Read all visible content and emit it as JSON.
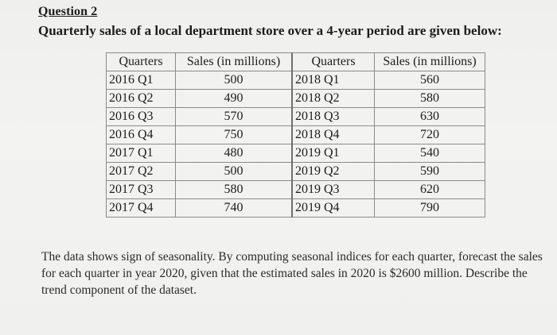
{
  "question": {
    "heading": "Question 2",
    "intro": "Quarterly sales of a local department store over a 4-year period are given below:"
  },
  "table": {
    "headers": [
      "Quarters",
      "Sales (in millions)",
      "Quarters",
      "Sales (in millions)"
    ],
    "rows": [
      [
        "2016 Q1",
        "500",
        "2018 Q1",
        "560"
      ],
      [
        "2016 Q2",
        "490",
        "2018 Q2",
        "580"
      ],
      [
        "2016 Q3",
        "570",
        "2018 Q3",
        "630"
      ],
      [
        "2016 Q4",
        "750",
        "2018 Q4",
        "720"
      ],
      [
        "2017 Q1",
        "480",
        "2019 Q1",
        "540"
      ],
      [
        "2017 Q2",
        "500",
        "2019 Q2",
        "590"
      ],
      [
        "2017 Q3",
        "580",
        "2019 Q3",
        "620"
      ],
      [
        "2017 Q4",
        "740",
        "2019 Q4",
        "790"
      ]
    ]
  },
  "paragraph": "The data shows sign of seasonality.  By computing seasonal indices for each quarter, forecast the sales for each quarter in year 2020, given that the estimated sales in 2020 is $2600 million.   Describe the trend component of the dataset."
}
